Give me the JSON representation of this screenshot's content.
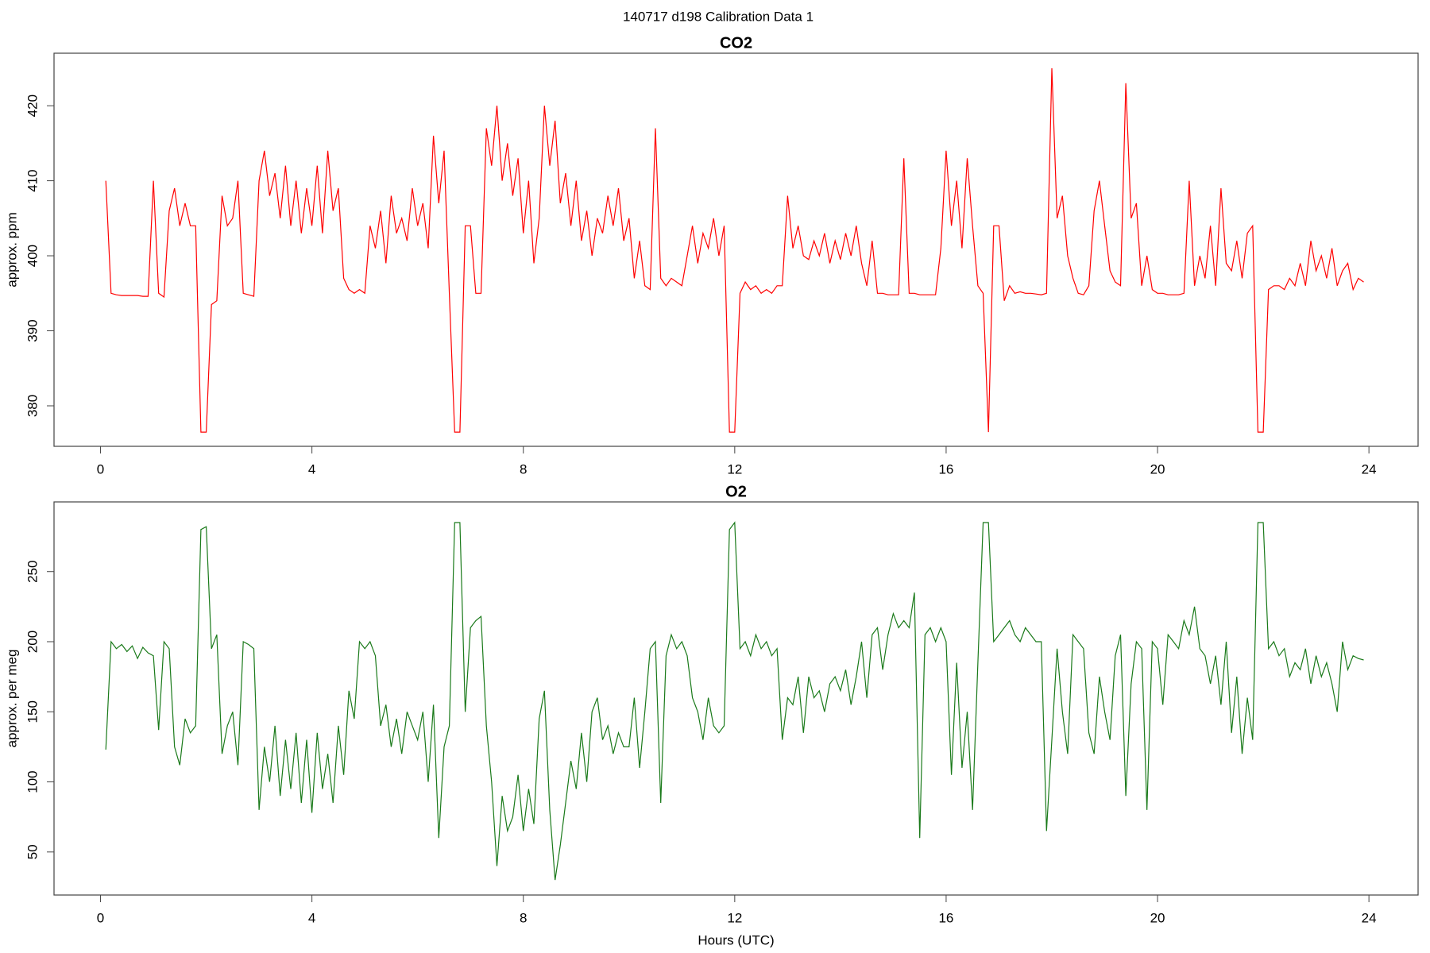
{
  "title": "140717   d198   Calibration Data 1",
  "chart_data": [
    {
      "type": "line",
      "title": "CO2",
      "ylabel": "approx. ppm",
      "color": "#ff0000",
      "xlim": [
        -0.88,
        24.93
      ],
      "ylim": [
        374.6,
        427.0
      ],
      "xticks": [
        0,
        4,
        8,
        12,
        16,
        20,
        24
      ],
      "yticks": [
        380,
        390,
        400,
        410,
        420
      ],
      "x": [
        0.1,
        0.2,
        0.3,
        0.4,
        0.5,
        0.6,
        0.7,
        0.8,
        0.9,
        1.0,
        1.1,
        1.2,
        1.3,
        1.4,
        1.5,
        1.6,
        1.7,
        1.8,
        1.9,
        2.0,
        2.1,
        2.2,
        2.3,
        2.4,
        2.5,
        2.6,
        2.7,
        2.8,
        2.9,
        3.0,
        3.1,
        3.2,
        3.3,
        3.4,
        3.5,
        3.6,
        3.7,
        3.8,
        3.9,
        4.0,
        4.1,
        4.2,
        4.3,
        4.4,
        4.5,
        4.6,
        4.7,
        4.8,
        4.9,
        5.0,
        5.1,
        5.2,
        5.3,
        5.4,
        5.5,
        5.6,
        5.7,
        5.8,
        5.9,
        6.0,
        6.1,
        6.2,
        6.3,
        6.4,
        6.5,
        6.6,
        6.7,
        6.8,
        6.9,
        7.0,
        7.1,
        7.2,
        7.3,
        7.4,
        7.5,
        7.6,
        7.7,
        7.8,
        7.9,
        8.0,
        8.1,
        8.2,
        8.3,
        8.4,
        8.5,
        8.6,
        8.7,
        8.8,
        8.9,
        9.0,
        9.1,
        9.2,
        9.3,
        9.4,
        9.5,
        9.6,
        9.7,
        9.8,
        9.9,
        10.0,
        10.1,
        10.2,
        10.3,
        10.4,
        10.5,
        10.6,
        10.7,
        10.8,
        10.9,
        11.0,
        11.1,
        11.2,
        11.3,
        11.4,
        11.5,
        11.6,
        11.7,
        11.8,
        11.9,
        12.0,
        12.1,
        12.2,
        12.3,
        12.4,
        12.5,
        12.6,
        12.7,
        12.8,
        12.9,
        13.0,
        13.1,
        13.2,
        13.3,
        13.4,
        13.5,
        13.6,
        13.7,
        13.8,
        13.9,
        14.0,
        14.1,
        14.2,
        14.3,
        14.4,
        14.5,
        14.6,
        14.7,
        14.8,
        14.9,
        15.0,
        15.1,
        15.2,
        15.3,
        15.4,
        15.5,
        15.6,
        15.7,
        15.8,
        15.9,
        16.0,
        16.1,
        16.2,
        16.3,
        16.4,
        16.5,
        16.6,
        16.7,
        16.8,
        16.9,
        17.0,
        17.1,
        17.2,
        17.3,
        17.4,
        17.5,
        17.6,
        17.7,
        17.8,
        17.9,
        18.0,
        18.1,
        18.2,
        18.3,
        18.4,
        18.5,
        18.6,
        18.7,
        18.8,
        18.9,
        19.0,
        19.1,
        19.2,
        19.3,
        19.4,
        19.5,
        19.6,
        19.7,
        19.8,
        19.9,
        20.0,
        20.1,
        20.2,
        20.3,
        20.4,
        20.5,
        20.6,
        20.7,
        20.8,
        20.9,
        21.0,
        21.1,
        21.2,
        21.3,
        21.4,
        21.5,
        21.6,
        21.7,
        21.8,
        21.9,
        22.0,
        22.1,
        22.2,
        22.3,
        22.4,
        22.5,
        22.6,
        22.7,
        22.8,
        22.9,
        23.0,
        23.1,
        23.2,
        23.3,
        23.4,
        23.5,
        23.6,
        23.7,
        23.8,
        23.9
      ],
      "values": [
        410,
        395,
        394.8,
        394.7,
        394.7,
        394.7,
        394.7,
        394.6,
        394.6,
        410,
        395,
        394.5,
        406,
        409,
        404,
        407,
        404,
        404,
        376.5,
        376.5,
        393.5,
        394,
        408,
        404,
        405,
        410,
        395,
        394.8,
        394.6,
        410,
        414,
        408,
        411,
        405,
        412,
        404,
        410,
        403,
        409,
        404,
        412,
        403,
        414,
        406,
        409,
        397,
        395.5,
        395,
        395.5,
        395,
        404,
        401,
        406,
        399,
        408,
        403,
        405,
        402,
        409,
        404,
        407,
        401,
        416,
        407,
        414,
        395,
        376.5,
        376.5,
        404,
        404,
        395,
        395,
        417,
        412,
        420,
        410,
        415,
        408,
        413,
        403,
        410,
        399,
        405,
        420,
        412,
        418,
        407,
        411,
        404,
        410,
        402,
        406,
        400,
        405,
        403,
        408,
        404,
        409,
        402,
        405,
        397,
        402,
        396,
        395.5,
        417,
        397,
        396,
        397,
        396.5,
        396,
        400,
        404,
        399,
        403,
        401,
        405,
        400,
        404,
        376.5,
        376.5,
        395,
        396.5,
        395.5,
        396,
        395,
        395.5,
        395,
        396,
        396,
        408,
        401,
        404,
        400,
        399.5,
        402,
        400,
        403,
        399,
        402,
        399.5,
        403,
        400,
        404,
        399,
        396,
        402,
        395,
        395,
        394.8,
        394.8,
        394.8,
        413,
        395,
        395,
        394.8,
        394.8,
        394.8,
        394.8,
        401,
        414,
        404,
        410,
        401,
        413,
        404,
        396,
        395,
        376.5,
        404,
        404,
        394,
        396,
        395,
        395.2,
        395,
        395,
        394.9,
        394.8,
        395,
        425,
        405,
        408,
        400,
        397,
        395,
        394.8,
        396,
        406,
        410,
        404,
        398,
        396.5,
        396,
        423,
        405,
        407,
        396,
        400,
        395.5,
        395,
        395,
        394.8,
        394.8,
        394.8,
        395,
        410,
        396,
        400,
        397,
        404,
        396,
        409,
        399,
        398,
        402,
        397,
        403,
        404,
        376.5,
        376.5,
        395.5,
        396,
        396,
        395.5,
        397,
        396,
        399,
        396,
        402,
        398,
        400,
        397,
        401,
        396,
        398,
        399,
        395.5,
        397,
        396.5
      ]
    },
    {
      "type": "line",
      "title": "O2",
      "ylabel": "approx. per meg",
      "xlabel": "Hours (UTC)",
      "color": "#1a7a1a",
      "xlim": [
        -0.88,
        24.93
      ],
      "ylim": [
        19.3,
        299.7
      ],
      "xticks": [
        0,
        4,
        8,
        12,
        16,
        20,
        24
      ],
      "yticks": [
        50,
        100,
        150,
        200,
        250
      ],
      "x": [
        0.1,
        0.2,
        0.3,
        0.4,
        0.5,
        0.6,
        0.7,
        0.8,
        0.9,
        1.0,
        1.1,
        1.2,
        1.3,
        1.4,
        1.5,
        1.6,
        1.7,
        1.8,
        1.9,
        2.0,
        2.1,
        2.2,
        2.3,
        2.4,
        2.5,
        2.6,
        2.7,
        2.8,
        2.9,
        3.0,
        3.1,
        3.2,
        3.3,
        3.4,
        3.5,
        3.6,
        3.7,
        3.8,
        3.9,
        4.0,
        4.1,
        4.2,
        4.3,
        4.4,
        4.5,
        4.6,
        4.7,
        4.8,
        4.9,
        5.0,
        5.1,
        5.2,
        5.3,
        5.4,
        5.5,
        5.6,
        5.7,
        5.8,
        5.9,
        6.0,
        6.1,
        6.2,
        6.3,
        6.4,
        6.5,
        6.6,
        6.7,
        6.8,
        6.9,
        7.0,
        7.1,
        7.2,
        7.3,
        7.4,
        7.5,
        7.6,
        7.7,
        7.8,
        7.9,
        8.0,
        8.1,
        8.2,
        8.3,
        8.4,
        8.5,
        8.6,
        8.7,
        8.8,
        8.9,
        9.0,
        9.1,
        9.2,
        9.3,
        9.4,
        9.5,
        9.6,
        9.7,
        9.8,
        9.9,
        10.0,
        10.1,
        10.2,
        10.3,
        10.4,
        10.5,
        10.6,
        10.7,
        10.8,
        10.9,
        11.0,
        11.1,
        11.2,
        11.3,
        11.4,
        11.5,
        11.6,
        11.7,
        11.8,
        11.9,
        12.0,
        12.1,
        12.2,
        12.3,
        12.4,
        12.5,
        12.6,
        12.7,
        12.8,
        12.9,
        13.0,
        13.1,
        13.2,
        13.3,
        13.4,
        13.5,
        13.6,
        13.7,
        13.8,
        13.9,
        14.0,
        14.1,
        14.2,
        14.3,
        14.4,
        14.5,
        14.6,
        14.7,
        14.8,
        14.9,
        15.0,
        15.1,
        15.2,
        15.3,
        15.4,
        15.5,
        15.6,
        15.7,
        15.8,
        15.9,
        16.0,
        16.1,
        16.2,
        16.3,
        16.4,
        16.5,
        16.6,
        16.7,
        16.8,
        16.9,
        17.0,
        17.1,
        17.2,
        17.3,
        17.4,
        17.5,
        17.6,
        17.7,
        17.8,
        17.9,
        18.0,
        18.1,
        18.2,
        18.3,
        18.4,
        18.5,
        18.6,
        18.7,
        18.8,
        18.9,
        19.0,
        19.1,
        19.2,
        19.3,
        19.4,
        19.5,
        19.6,
        19.7,
        19.8,
        19.9,
        20.0,
        20.1,
        20.2,
        20.3,
        20.4,
        20.5,
        20.6,
        20.7,
        20.8,
        20.9,
        21.0,
        21.1,
        21.2,
        21.3,
        21.4,
        21.5,
        21.6,
        21.7,
        21.8,
        21.9,
        22.0,
        22.1,
        22.2,
        22.3,
        22.4,
        22.5,
        22.6,
        22.7,
        22.8,
        22.9,
        23.0,
        23.1,
        23.2,
        23.3,
        23.4,
        23.5,
        23.6,
        23.7,
        23.8,
        23.9
      ],
      "values": [
        123,
        200,
        195,
        198,
        193,
        197,
        188,
        196,
        192,
        190,
        137,
        200,
        195,
        125,
        112,
        145,
        135,
        140,
        280,
        282,
        195,
        205,
        120,
        140,
        150,
        112,
        200,
        198,
        195,
        80,
        125,
        100,
        140,
        90,
        130,
        95,
        135,
        85,
        130,
        78,
        135,
        95,
        120,
        85,
        140,
        105,
        165,
        145,
        200,
        195,
        200,
        190,
        140,
        155,
        125,
        145,
        120,
        150,
        140,
        130,
        150,
        100,
        155,
        60,
        125,
        140,
        285,
        285,
        150,
        210,
        215,
        218,
        140,
        100,
        40,
        90,
        65,
        75,
        105,
        65,
        95,
        70,
        145,
        165,
        80,
        30,
        55,
        85,
        115,
        95,
        135,
        100,
        150,
        160,
        130,
        140,
        120,
        135,
        125,
        125,
        160,
        110,
        150,
        195,
        200,
        85,
        190,
        205,
        195,
        200,
        190,
        160,
        150,
        130,
        160,
        140,
        135,
        140,
        280,
        285,
        195,
        200,
        190,
        205,
        195,
        200,
        190,
        195,
        130,
        160,
        155,
        175,
        135,
        175,
        160,
        165,
        150,
        170,
        175,
        165,
        180,
        155,
        175,
        200,
        160,
        205,
        210,
        180,
        205,
        220,
        210,
        215,
        210,
        235,
        60,
        205,
        210,
        200,
        210,
        200,
        105,
        185,
        110,
        150,
        80,
        185,
        285,
        285,
        200,
        205,
        210,
        215,
        205,
        200,
        210,
        205,
        200,
        200,
        65,
        130,
        195,
        150,
        120,
        205,
        200,
        195,
        135,
        120,
        175,
        150,
        130,
        190,
        205,
        90,
        170,
        200,
        195,
        80,
        200,
        195,
        155,
        205,
        200,
        195,
        215,
        205,
        225,
        195,
        190,
        170,
        190,
        155,
        200,
        135,
        175,
        120,
        160,
        130,
        285,
        285,
        195,
        200,
        190,
        195,
        175,
        185,
        180,
        195,
        170,
        190,
        175,
        185,
        170,
        150,
        200,
        180,
        190,
        188,
        187
      ]
    }
  ]
}
